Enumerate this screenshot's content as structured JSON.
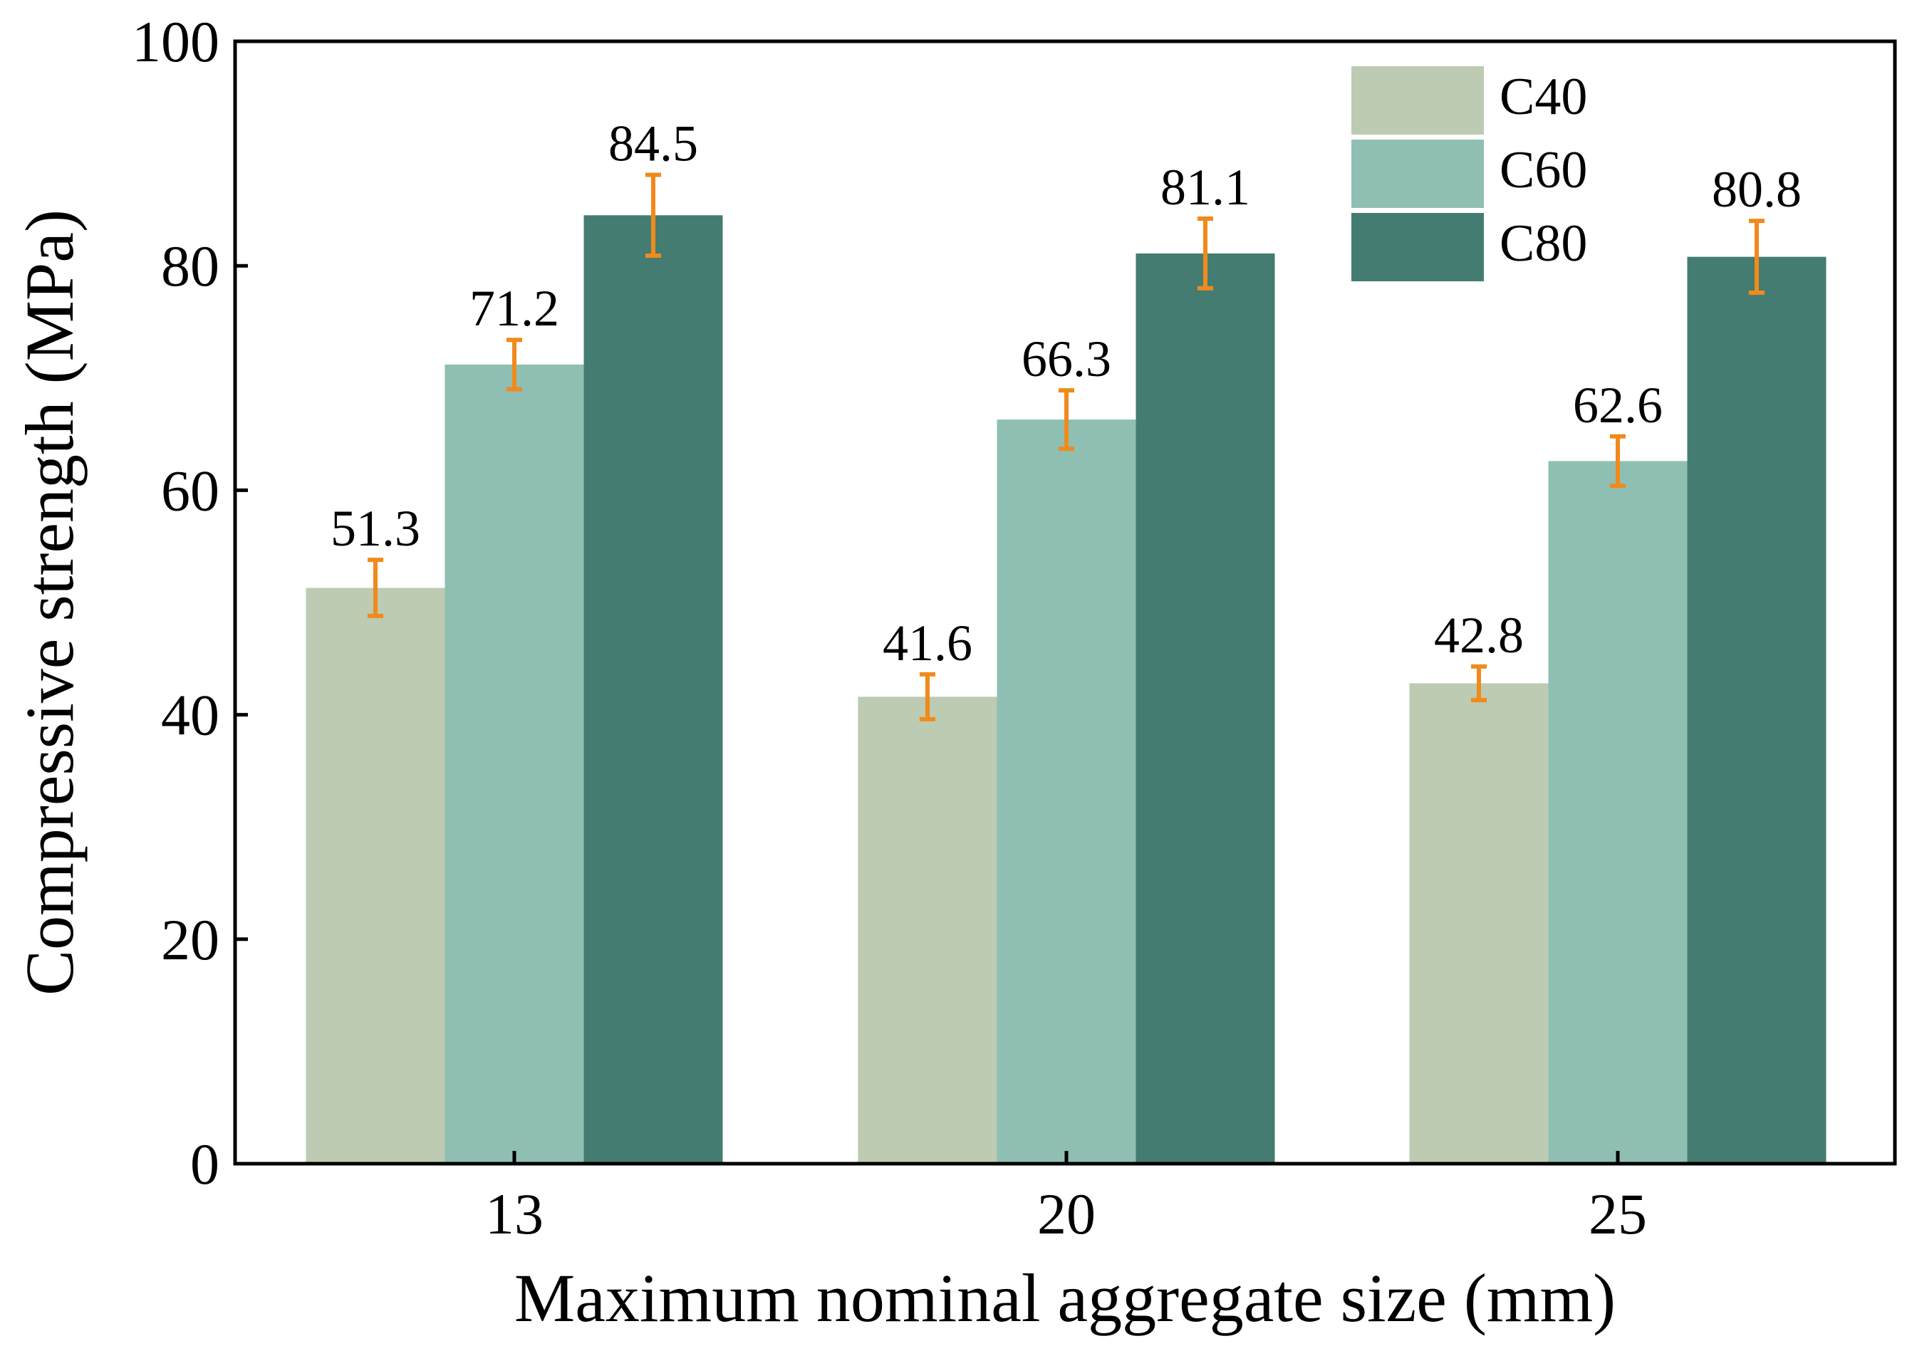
{
  "chart_data": {
    "type": "bar",
    "title": "",
    "xlabel": "Maximum nominal aggregate size (mm)",
    "ylabel": "Compressive strength (MPa)",
    "categories": [
      "13",
      "20",
      "25"
    ],
    "ylim": [
      0,
      100
    ],
    "yticks": [
      0,
      20,
      40,
      60,
      80,
      100
    ],
    "ytick_labels": [
      "0",
      "20",
      "40",
      "60",
      "80",
      "100"
    ],
    "grid": false,
    "legend_position": "top-right",
    "series": [
      {
        "name": "C40",
        "color": "#bccbb2",
        "values": [
          51.3,
          41.6,
          42.8
        ],
        "errors": [
          2.5,
          2.0,
          1.5
        ],
        "labels": [
          "51.3",
          "41.6",
          "42.8"
        ]
      },
      {
        "name": "C60",
        "color": "#8fbfb3",
        "values": [
          71.2,
          66.3,
          62.6
        ],
        "errors": [
          2.2,
          2.6,
          2.2
        ],
        "labels": [
          "71.2",
          "66.3",
          "62.6"
        ]
      },
      {
        "name": "C80",
        "color": "#447c71",
        "values": [
          84.5,
          81.1,
          80.8
        ],
        "errors": [
          3.6,
          3.1,
          3.2
        ],
        "labels": [
          "84.5",
          "81.1",
          "80.8"
        ]
      }
    ],
    "error_bar_color": "#f08a1c",
    "axis_color": "#000000"
  }
}
